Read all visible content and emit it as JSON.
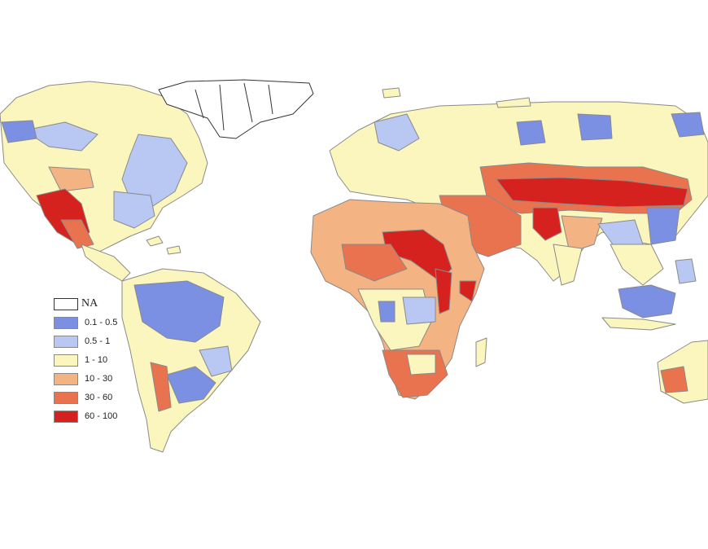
{
  "colors": {
    "na": "#ffffff",
    "c1": "#7b8fe3",
    "c2": "#b9c8f2",
    "c3": "#fbf6bd",
    "c4": "#f4b383",
    "c5": "#e9734e",
    "c6": "#d6221f",
    "border": "#8a8a8a"
  },
  "legend": {
    "items": [
      {
        "key": "na",
        "label": "NA"
      },
      {
        "key": "c1",
        "label": "0.1 - 0.5"
      },
      {
        "key": "c2",
        "label": "0.5 - 1"
      },
      {
        "key": "c3",
        "label": "1 - 10"
      },
      {
        "key": "c4",
        "label": "10 - 30"
      },
      {
        "key": "c5",
        "label": "30 - 60"
      },
      {
        "key": "c6",
        "label": "60 - 100"
      }
    ]
  }
}
